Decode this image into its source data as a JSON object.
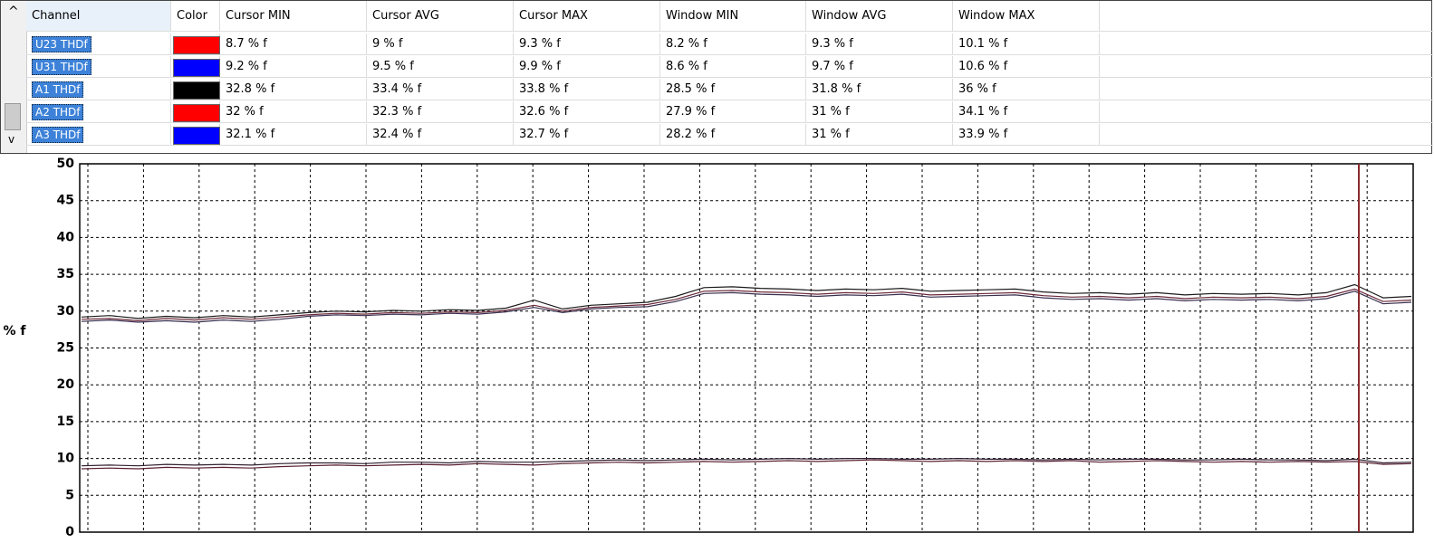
{
  "table": {
    "columns": [
      "Channel",
      "Color",
      "Cursor MIN",
      "Cursor AVG",
      "Cursor MAX",
      "Window MIN",
      "Window AVG",
      "Window MAX"
    ],
    "rows": [
      {
        "channel": "U23 THDf",
        "color": "#ff0000",
        "cells": [
          "8.7 % f",
          "9 % f",
          "9.3 % f",
          "8.2 % f",
          "9.3 % f",
          "10.1 % f"
        ]
      },
      {
        "channel": "U31 THDf",
        "color": "#0000ff",
        "cells": [
          "9.2 % f",
          "9.5 % f",
          "9.9 % f",
          "8.6 % f",
          "9.7 % f",
          "10.6 % f"
        ]
      },
      {
        "channel": "A1 THDf",
        "color": "#000000",
        "cells": [
          "32.8 % f",
          "33.4 % f",
          "33.8 % f",
          "28.5 % f",
          "31.8 % f",
          "36 % f"
        ]
      },
      {
        "channel": "A2 THDf",
        "color": "#ff0000",
        "cells": [
          "32 % f",
          "32.3 % f",
          "32.6 % f",
          "27.9 % f",
          "31 % f",
          "34.1 % f"
        ]
      },
      {
        "channel": "A3 THDf",
        "color": "#0000ff",
        "cells": [
          "32.1 % f",
          "32.4 % f",
          "32.7 % f",
          "28.2 % f",
          "31 % f",
          "33.9 % f"
        ]
      }
    ]
  },
  "chart_data": {
    "type": "line",
    "y_label": "% f",
    "ylim": [
      0,
      50
    ],
    "yticks": [
      0,
      5,
      10,
      15,
      20,
      25,
      30,
      35,
      40,
      45,
      50
    ],
    "grid": true,
    "series": [
      {
        "color": "#5a2030",
        "values": [
          8.6,
          8.7,
          8.6,
          8.8,
          8.7,
          8.8,
          8.7,
          8.9,
          9.0,
          9.1,
          9.0,
          9.1,
          9.2,
          9.1,
          9.3,
          9.2,
          9.1,
          9.3,
          9.4,
          9.5,
          9.4,
          9.5,
          9.6,
          9.5,
          9.6,
          9.7,
          9.6,
          9.7,
          9.8,
          9.7,
          9.6,
          9.7,
          9.6,
          9.7,
          9.6,
          9.7,
          9.5,
          9.6,
          9.7,
          9.6,
          9.5,
          9.6,
          9.5,
          9.6,
          9.5,
          9.6,
          9.2,
          9.3
        ]
      },
      {
        "color": "#302030",
        "values": [
          9.0,
          9.1,
          9.0,
          9.2,
          9.1,
          9.2,
          9.1,
          9.3,
          9.4,
          9.4,
          9.3,
          9.5,
          9.5,
          9.4,
          9.6,
          9.5,
          9.5,
          9.6,
          9.7,
          9.8,
          9.7,
          9.8,
          9.9,
          9.8,
          9.9,
          10.0,
          9.9,
          10.0,
          10.0,
          9.9,
          9.9,
          10.0,
          9.9,
          9.9,
          9.8,
          9.9,
          9.8,
          9.9,
          9.9,
          9.8,
          9.8,
          9.9,
          9.8,
          9.8,
          9.7,
          9.9,
          9.4,
          9.5
        ]
      },
      {
        "color": "#1a1a1a",
        "values": [
          29.2,
          29.4,
          29.0,
          29.3,
          29.1,
          29.4,
          29.2,
          29.5,
          29.8,
          30.0,
          29.9,
          30.1,
          30.0,
          30.2,
          30.1,
          30.4,
          31.5,
          30.3,
          30.8,
          31.0,
          31.2,
          32.0,
          33.2,
          33.3,
          33.1,
          33.0,
          32.8,
          33.0,
          32.9,
          33.1,
          32.7,
          32.8,
          32.9,
          33.0,
          32.6,
          32.4,
          32.5,
          32.3,
          32.5,
          32.2,
          32.4,
          32.3,
          32.4,
          32.2,
          32.5,
          33.6,
          31.8,
          32.0
        ]
      },
      {
        "color": "#6a2838",
        "values": [
          28.9,
          29.0,
          28.7,
          29.0,
          28.8,
          29.1,
          28.9,
          29.2,
          29.5,
          29.7,
          29.6,
          29.8,
          29.7,
          29.9,
          29.8,
          30.1,
          30.8,
          30.0,
          30.5,
          30.7,
          30.9,
          31.6,
          32.7,
          32.8,
          32.6,
          32.5,
          32.3,
          32.5,
          32.4,
          32.6,
          32.2,
          32.3,
          32.4,
          32.5,
          32.1,
          31.9,
          32.0,
          31.8,
          32.0,
          31.7,
          31.9,
          31.8,
          31.9,
          31.7,
          32.0,
          33.0,
          31.3,
          31.5
        ]
      },
      {
        "color": "#3a3050",
        "values": [
          28.6,
          28.8,
          28.5,
          28.7,
          28.5,
          28.8,
          28.6,
          28.9,
          29.3,
          29.5,
          29.4,
          29.6,
          29.5,
          29.7,
          29.6,
          29.9,
          30.5,
          29.8,
          30.3,
          30.5,
          30.6,
          31.3,
          32.4,
          32.5,
          32.3,
          32.2,
          32.0,
          32.2,
          32.1,
          32.3,
          31.9,
          32.0,
          32.1,
          32.2,
          31.8,
          31.6,
          31.7,
          31.5,
          31.7,
          31.4,
          31.6,
          31.5,
          31.6,
          31.4,
          31.7,
          32.7,
          31.0,
          31.2
        ]
      }
    ]
  }
}
